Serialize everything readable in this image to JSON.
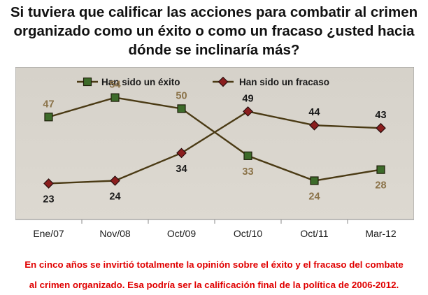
{
  "title_lines": [
    "Si tuviera que calificar las acciones para combatir al crimen",
    "organizado como un éxito o como un fracaso ¿usted hacia",
    "dónde se inclinaría más?"
  ],
  "footnote_lines": [
    "En cinco años se invirtió totalmente la opinión sobre el éxito y el fracaso del combate",
    "al crimen organizado.  Esa podría ser la calificación final de la política de 2006-2012."
  ],
  "colors": {
    "plot_background": "#d8d4cc",
    "exito_label": "#8b7349",
    "fracaso_label": "#1a1a1a",
    "exito_marker": "#3d6b2a",
    "fracaso_marker": "#8b1e1e",
    "line": "#4a3a14",
    "footnote": "#e00000"
  },
  "chart_data": {
    "type": "line",
    "categories": [
      "Ene/07",
      "Nov/08",
      "Oct/09",
      "Oct/10",
      "Oct/11",
      "Mar-12"
    ],
    "series": [
      {
        "name": "Han sido un éxito",
        "values": [
          47,
          54,
          50,
          33,
          24,
          28
        ],
        "marker": "square"
      },
      {
        "name": "Han sido un fracaso",
        "values": [
          23,
          24,
          34,
          49,
          44,
          43
        ],
        "marker": "diamond"
      }
    ],
    "ylim": [
      10,
      65
    ],
    "grid": false,
    "legend_position": "top"
  }
}
